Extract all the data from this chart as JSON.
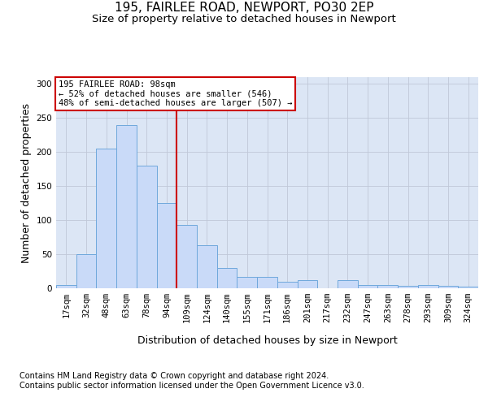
{
  "title_line1": "195, FAIRLEE ROAD, NEWPORT, PO30 2EP",
  "title_line2": "Size of property relative to detached houses in Newport",
  "xlabel": "Distribution of detached houses by size in Newport",
  "ylabel": "Number of detached properties",
  "footer_line1": "Contains HM Land Registry data © Crown copyright and database right 2024.",
  "footer_line2": "Contains public sector information licensed under the Open Government Licence v3.0.",
  "annotation_line1": "195 FAIRLEE ROAD: 98sqm",
  "annotation_line2": "← 52% of detached houses are smaller (546)",
  "annotation_line3": "48% of semi-detached houses are larger (507) →",
  "categories": [
    "17sqm",
    "32sqm",
    "48sqm",
    "63sqm",
    "78sqm",
    "94sqm",
    "109sqm",
    "124sqm",
    "140sqm",
    "155sqm",
    "171sqm",
    "186sqm",
    "201sqm",
    "217sqm",
    "232sqm",
    "247sqm",
    "263sqm",
    "278sqm",
    "293sqm",
    "309sqm",
    "324sqm"
  ],
  "values": [
    5,
    50,
    205,
    240,
    180,
    125,
    93,
    63,
    30,
    17,
    17,
    10,
    12,
    0,
    12,
    5,
    5,
    3,
    5,
    3,
    2
  ],
  "bar_color": "#c9daf8",
  "bar_edge_color": "#6fa8dc",
  "bar_width": 1.0,
  "vline_x": 5.5,
  "vline_color": "#cc0000",
  "ylim": [
    0,
    310
  ],
  "yticks": [
    0,
    50,
    100,
    150,
    200,
    250,
    300
  ],
  "grid_color": "#c0c8d8",
  "background_color": "#dce6f5",
  "annotation_box_color": "#cc0000",
  "annotation_text_color": "#000000",
  "title_fontsize": 11,
  "subtitle_fontsize": 9.5,
  "axis_label_fontsize": 9,
  "tick_fontsize": 7.5,
  "footer_fontsize": 7,
  "annotation_fontsize": 7.5
}
